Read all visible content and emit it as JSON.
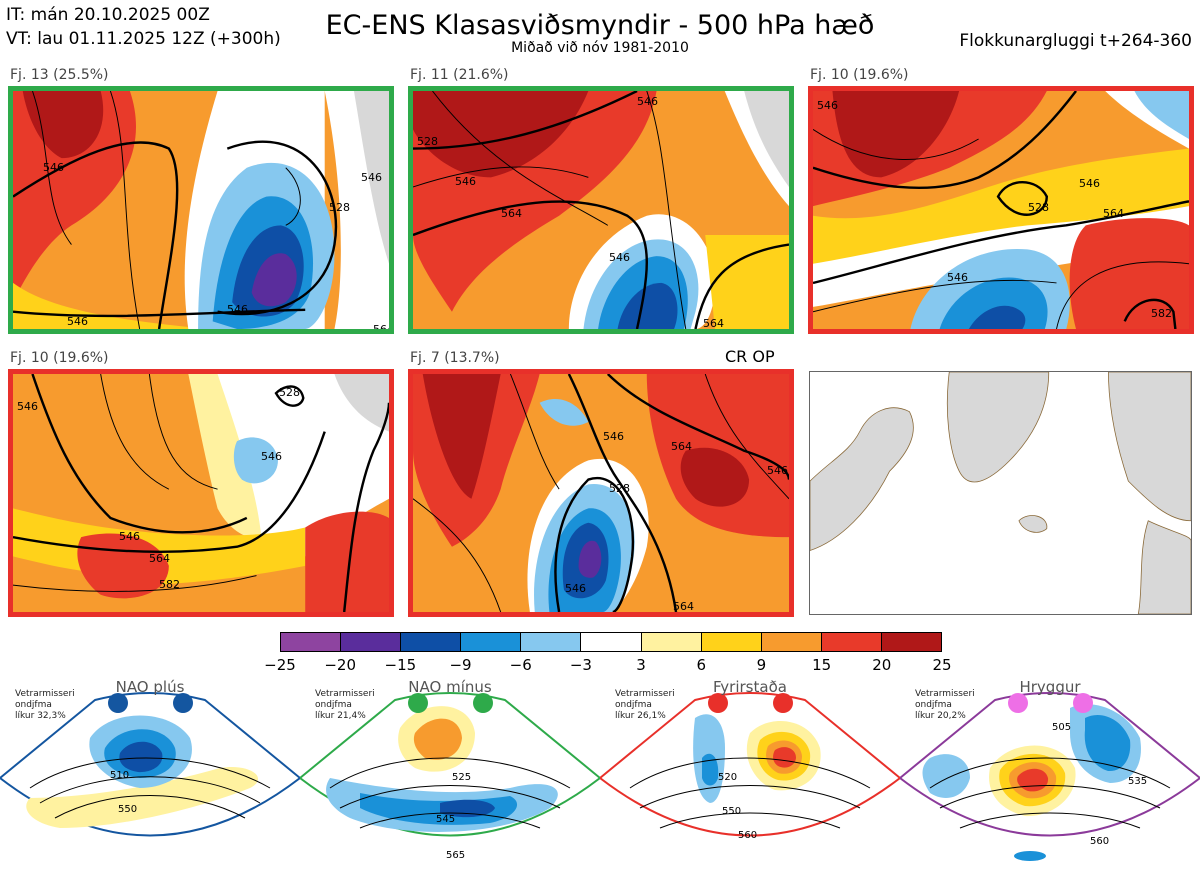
{
  "header": {
    "it": "IT: mán 20.10.2025 00Z",
    "vt": "VT: lau 01.11.2025 12Z  (+300h)",
    "title": "EC-ENS Klasasviðsmyndir - 500 hPa hæð",
    "subtitle": "Miðað við nóv 1981-2010",
    "window": "Flokkunargluggi t+264-360"
  },
  "panels": [
    {
      "label": "Fj. 13 (25.5%)",
      "border_color": "#2eaa4a",
      "contours": [
        "546",
        "528",
        "546",
        "546",
        "546",
        "564"
      ]
    },
    {
      "label": "Fj. 11 (21.6%)",
      "border_color": "#2eaa4a",
      "contours": [
        "528",
        "546",
        "564",
        "546",
        "546",
        "564"
      ]
    },
    {
      "label": "Fj. 10 (19.6%)",
      "border_color": "#e8302a",
      "contours": [
        "546",
        "528",
        "546",
        "564",
        "546",
        "582"
      ]
    },
    {
      "label": "Fj. 10 (19.6%)",
      "border_color": "#e8302a",
      "contours": [
        "546",
        "528",
        "546",
        "546",
        "564",
        "582"
      ]
    },
    {
      "label": "Fj. 7 (13.7%)",
      "border_color": "#e8302a",
      "contours": [
        "546",
        "528",
        "564",
        "546",
        "546",
        "564"
      ]
    }
  ],
  "cr_op_label": "CR OP",
  "colorbar": {
    "colors": [
      "#8e44a0",
      "#5a2d9c",
      "#0e4fa6",
      "#1a91d8",
      "#86c8ef",
      "#ffffff",
      "#fff2a0",
      "#ffd21a",
      "#f79b2e",
      "#e83a2a",
      "#b01818"
    ],
    "ticks": [
      "−25",
      "−20",
      "−15",
      "−9",
      "−6",
      "−3",
      "3",
      "6",
      "9",
      "15",
      "20",
      "25"
    ]
  },
  "regimes": [
    {
      "title": "NAO plús",
      "note": [
        "Vetrarmisseri",
        "ondjfma",
        "líkur 32,3%"
      ],
      "color": "#1456a0",
      "dot_color": "#1456a0",
      "labels": [
        "510",
        "550"
      ]
    },
    {
      "title": "NAO mínus",
      "note": [
        "Vetrarmisseri",
        "ondjfma",
        "líkur 21,4%"
      ],
      "color": "#2eaa4a",
      "dot_color": "#2eaa4a",
      "labels": [
        "525",
        "545",
        "565"
      ]
    },
    {
      "title": "Fyrirstaða",
      "note": [
        "Vetrarmisseri",
        "ondjfma",
        "líkur 26,1%"
      ],
      "color": "#e8302a",
      "dot_color": "#e8302a",
      "labels": [
        "520",
        "550",
        "560"
      ]
    },
    {
      "title": "Hryggur",
      "note": [
        "Vetrarmisseri",
        "ondjfma",
        "líkur 20,2%"
      ],
      "color": "#8b3a9a",
      "dot_color": "#ee6fe6",
      "labels": [
        "505",
        "535",
        "560"
      ]
    }
  ]
}
